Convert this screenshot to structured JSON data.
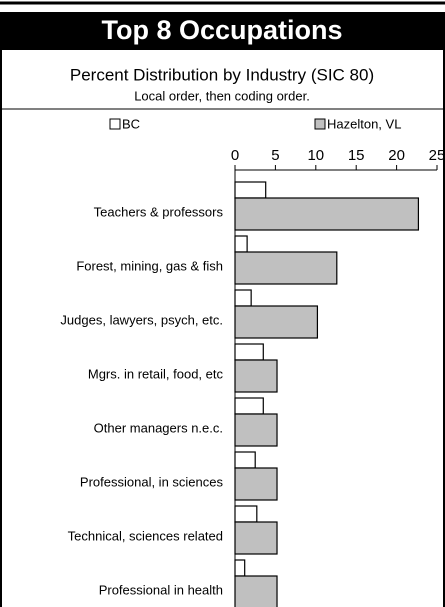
{
  "chart_data": {
    "type": "bar",
    "orientation": "horizontal",
    "title": "Top 8 Occupations",
    "subtitle": "Percent Distribution by Industry (SIC 80)",
    "note": "Local order, then coding order.",
    "categories": [
      "Teachers & professors",
      "Forest, mining, gas & fish",
      "Judges, lawyers, psych, etc.",
      "Mgrs. in retail, food, etc",
      "Other managers n.e.c.",
      "Professional, in sciences",
      "Technical, sciences related",
      "Professional  in health"
    ],
    "series": [
      {
        "name": "BC",
        "color": "#ffffff",
        "values": [
          3.8,
          1.5,
          2.0,
          3.5,
          3.5,
          2.5,
          2.7,
          1.2
        ]
      },
      {
        "name": "Hazelton, VL",
        "color": "#c0c0c0",
        "values": [
          22.7,
          12.6,
          10.2,
          5.2,
          5.2,
          5.2,
          5.2,
          5.2
        ]
      }
    ],
    "xlim": [
      0,
      25
    ],
    "xticks": [
      0,
      5,
      10,
      15,
      20,
      25
    ]
  }
}
